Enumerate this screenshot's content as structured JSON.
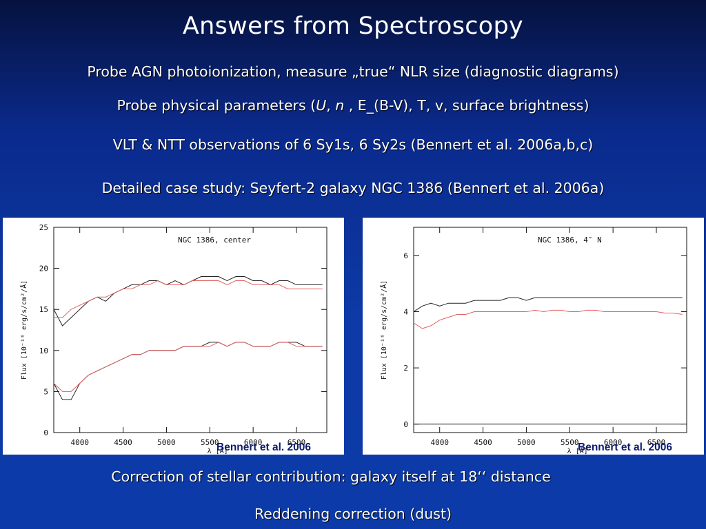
{
  "slide": {
    "title": "Answers from Spectroscopy",
    "bullets": [
      "Probe AGN photoionization, measure „true“ NLR size (diagnostic diagrams)",
      "VLT & NTT observations of 6 Sy1s, 6 Sy2s (Bennert et al. 2006a,b,c)",
      "Detailed case study: Seyfert-2 galaxy NGC 1386 (Bennert et al. 2006a)"
    ],
    "params": {
      "prefix": "Probe physical parameters (",
      "U": "U",
      "sep1": ", ",
      "n": "n",
      "suffix": " , E_(B-V), T, v, surface brightness)"
    },
    "bottom": [
      "Correction of stellar contribution: galaxy itself at 18‘‘ distance",
      "Reddening correction (dust)"
    ]
  },
  "figures": [
    {
      "label": "NGC 1386, center",
      "caption": "Bennert et al. 2006",
      "ylabel": "Flux [10⁻¹⁶ erg/s/cm²/Å]",
      "xlabel": "λ [Å]",
      "line_colors": {
        "observed": "#222222",
        "template": "#e06060"
      }
    },
    {
      "label": "NGC 1386, 4″ N",
      "caption": "Bennert et al. 2006",
      "ylabel": "Flux [10⁻¹⁶ erg/s/cm²/Å]",
      "xlabel": "λ [Å]",
      "line_colors": {
        "observed": "#222222",
        "template": "#e06060"
      }
    }
  ],
  "chart_data": [
    {
      "type": "line",
      "title": "NGC 1386, center",
      "xlabel": "λ [Å]",
      "ylabel": "Flux [10⁻¹⁶ erg/s/cm²/Å]",
      "xlim": [
        3700,
        6850
      ],
      "ylim": [
        0,
        25
      ],
      "xticks": [
        4000,
        4500,
        5000,
        5500,
        6000,
        6500
      ],
      "yticks": [
        0,
        5,
        10,
        15,
        20,
        25
      ],
      "series": [
        {
          "x": [
            3700,
            3800,
            3900,
            4000,
            4100,
            4200,
            4300,
            4400,
            4500,
            4600,
            4700,
            4800,
            4900,
            5000,
            5100,
            5200,
            5300,
            5400,
            5500,
            5600,
            5700,
            5800,
            5900,
            6000,
            6100,
            6200,
            6300,
            6400,
            6500,
            6600,
            6700,
            6800
          ],
          "y": [
            15,
            13,
            14,
            15,
            16,
            16.5,
            16,
            17,
            17.5,
            18,
            18,
            18.5,
            18.5,
            18,
            18.5,
            18,
            18.5,
            19,
            19,
            19,
            18.5,
            19,
            19,
            18.5,
            18.5,
            18,
            18.5,
            18.5,
            18,
            18,
            18,
            18
          ]
        },
        {
          "x": [
            3700,
            3800,
            3900,
            4000,
            4100,
            4200,
            4300,
            4400,
            4500,
            4600,
            4700,
            4800,
            4900,
            5000,
            5100,
            5200,
            5300,
            5400,
            5500,
            5600,
            5700,
            5800,
            5900,
            6000,
            6100,
            6200,
            6300,
            6400,
            6500,
            6600,
            6700,
            6800
          ],
          "y": [
            14,
            14,
            15,
            15.5,
            16,
            16.5,
            16.5,
            17,
            17.5,
            17.5,
            18,
            18,
            18.5,
            18,
            18,
            18,
            18.5,
            18.5,
            18.5,
            18.5,
            18,
            18.5,
            18.5,
            18,
            18,
            18,
            18,
            17.5,
            17.5,
            17.5,
            17.5,
            17.5
          ]
        },
        {
          "x": [
            3700,
            3800,
            3900,
            4000,
            4100,
            4200,
            4300,
            4400,
            4500,
            4600,
            4700,
            4800,
            4900,
            5000,
            5100,
            5200,
            5300,
            5400,
            5500,
            5600,
            5700,
            5800,
            5900,
            6000,
            6100,
            6200,
            6300,
            6400,
            6500,
            6600,
            6700,
            6800
          ],
          "y": [
            6,
            4,
            4,
            6,
            7,
            7.5,
            8,
            8.5,
            9,
            9.5,
            9.5,
            10,
            10,
            10,
            10,
            10.5,
            10.5,
            10.5,
            11,
            11,
            10.5,
            11,
            11,
            10.5,
            10.5,
            10.5,
            11,
            11,
            11,
            10.5,
            10.5,
            10.5
          ]
        },
        {
          "x": [
            3700,
            3800,
            3900,
            4000,
            4100,
            4200,
            4300,
            4400,
            4500,
            4600,
            4700,
            4800,
            4900,
            5000,
            5100,
            5200,
            5300,
            5400,
            5500,
            5600,
            5700,
            5800,
            5900,
            6000,
            6100,
            6200,
            6300,
            6400,
            6500,
            6600,
            6700,
            6800
          ],
          "y": [
            6,
            5,
            5,
            6,
            7,
            7.5,
            8,
            8.5,
            9,
            9.5,
            9.5,
            10,
            10,
            10,
            10,
            10.5,
            10.5,
            10.5,
            10.5,
            11,
            10.5,
            11,
            11,
            10.5,
            10.5,
            10.5,
            11,
            11,
            10.5,
            10.5,
            10.5,
            10.5
          ]
        }
      ]
    },
    {
      "type": "line",
      "title": "NGC 1386, 4″ N",
      "xlabel": "λ [Å]",
      "ylabel": "Flux [10⁻¹⁶ erg/s/cm²/Å]",
      "xlim": [
        3700,
        6850
      ],
      "ylim": [
        -0.3,
        7
      ],
      "xticks": [
        4000,
        4500,
        5000,
        5500,
        6000,
        6500
      ],
      "yticks": [
        0,
        2,
        4,
        6
      ],
      "series": [
        {
          "x": [
            3700,
            3800,
            3900,
            4000,
            4100,
            4200,
            4300,
            4400,
            4500,
            4600,
            4700,
            4800,
            4900,
            5000,
            5100,
            5200,
            5300,
            5400,
            5500,
            5600,
            5700,
            5800,
            5900,
            6000,
            6100,
            6200,
            6300,
            6400,
            6500,
            6600,
            6700,
            6800
          ],
          "y": [
            4,
            4.2,
            4.3,
            4.2,
            4.3,
            4.3,
            4.3,
            4.4,
            4.4,
            4.4,
            4.4,
            4.5,
            4.5,
            4.4,
            4.5,
            4.5,
            4.5,
            4.5,
            4.5,
            4.5,
            4.5,
            4.5,
            4.5,
            4.5,
            4.5,
            4.5,
            4.5,
            4.5,
            4.5,
            4.5,
            4.5,
            4.5
          ]
        },
        {
          "x": [
            3700,
            3800,
            3900,
            4000,
            4100,
            4200,
            4300,
            4400,
            4500,
            4600,
            4700,
            4800,
            4900,
            5000,
            5100,
            5200,
            5300,
            5400,
            5500,
            5600,
            5700,
            5800,
            5900,
            6000,
            6100,
            6200,
            6300,
            6400,
            6500,
            6600,
            6700,
            6800
          ],
          "y": [
            3.6,
            3.4,
            3.5,
            3.7,
            3.8,
            3.9,
            3.9,
            4,
            4,
            4,
            4,
            4,
            4,
            4,
            4.05,
            4,
            4.05,
            4.05,
            4,
            4,
            4.05,
            4.05,
            4,
            4,
            4,
            4,
            4,
            4,
            4,
            3.95,
            3.95,
            3.9
          ]
        },
        {
          "x": [
            3700,
            3800,
            3900,
            4000,
            4100,
            4200,
            4300,
            4400,
            4500,
            4600,
            4700,
            4800,
            4900,
            5000,
            5100,
            5200,
            5300,
            5400,
            5500,
            5600,
            5700,
            5800,
            5900,
            6000,
            6100,
            6200,
            6300,
            6400,
            6500,
            6600,
            6700,
            6800
          ],
          "y": [
            0,
            0,
            0,
            0,
            0,
            0,
            0,
            0,
            0,
            0,
            0,
            0,
            0,
            0,
            0,
            0,
            0,
            0,
            0,
            0,
            0,
            0,
            0,
            0,
            0,
            0,
            0,
            0,
            0,
            0,
            0,
            0
          ]
        }
      ]
    }
  ]
}
